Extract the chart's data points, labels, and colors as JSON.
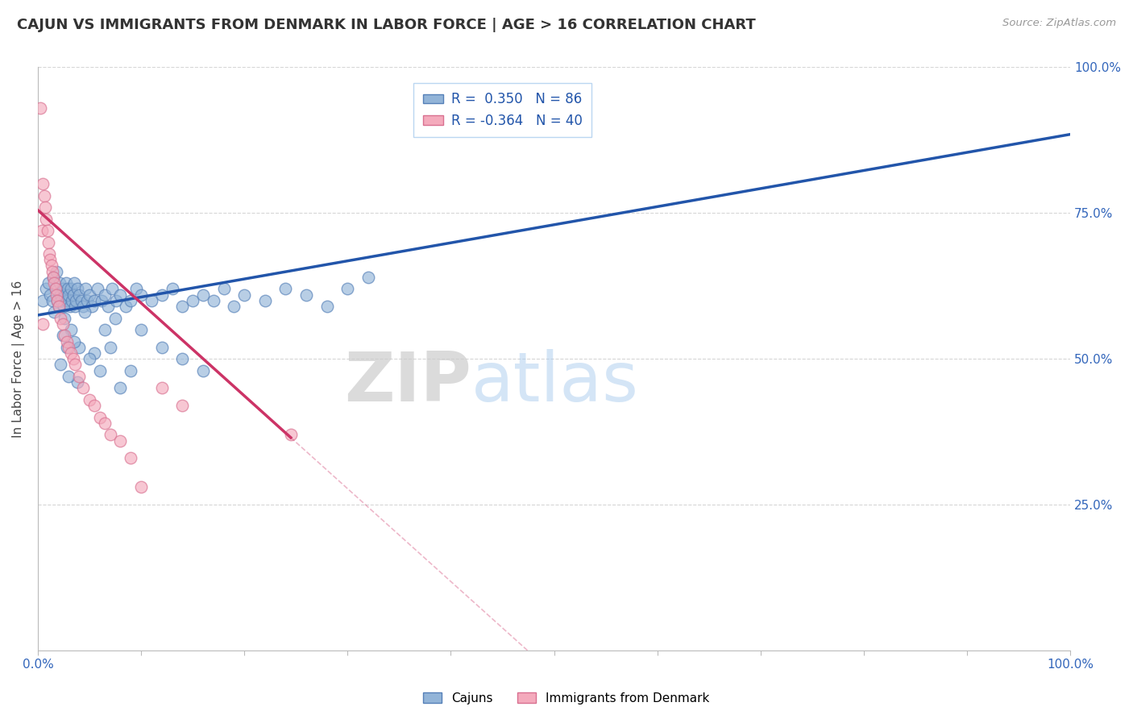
{
  "title": "CAJUN VS IMMIGRANTS FROM DENMARK IN LABOR FORCE | AGE > 16 CORRELATION CHART",
  "source": "Source: ZipAtlas.com",
  "ylabel": "In Labor Force | Age > 16",
  "xlim": [
    0.0,
    1.0
  ],
  "ylim": [
    0.0,
    1.0
  ],
  "blue_R": 0.35,
  "blue_N": 86,
  "pink_R": -0.364,
  "pink_N": 40,
  "blue_color": "#92B4D8",
  "pink_color": "#F4AABC",
  "blue_edge_color": "#5580B8",
  "pink_edge_color": "#D97090",
  "blue_line_color": "#2255AA",
  "pink_line_color": "#CC3366",
  "legend_label_blue": "Cajuns",
  "legend_label_pink": "Immigrants from Denmark",
  "watermark_zip": "ZIP",
  "watermark_atlas": "atlas",
  "title_fontsize": 13,
  "label_fontsize": 11,
  "tick_fontsize": 11,
  "blue_line_start_y": 0.575,
  "blue_line_end_y": 0.885,
  "pink_line_start_y": 0.755,
  "pink_line_end_y": 0.365,
  "pink_line_end_x": 0.245,
  "blue_scatter_x": [
    0.005,
    0.008,
    0.01,
    0.012,
    0.014,
    0.015,
    0.016,
    0.017,
    0.018,
    0.019,
    0.02,
    0.021,
    0.022,
    0.023,
    0.024,
    0.025,
    0.026,
    0.027,
    0.028,
    0.029,
    0.03,
    0.031,
    0.032,
    0.033,
    0.034,
    0.035,
    0.036,
    0.037,
    0.038,
    0.04,
    0.042,
    0.044,
    0.046,
    0.048,
    0.05,
    0.052,
    0.055,
    0.058,
    0.062,
    0.065,
    0.068,
    0.072,
    0.076,
    0.08,
    0.085,
    0.09,
    0.095,
    0.1,
    0.11,
    0.12,
    0.13,
    0.14,
    0.15,
    0.16,
    0.17,
    0.18,
    0.19,
    0.2,
    0.22,
    0.24,
    0.26,
    0.28,
    0.3,
    0.32,
    0.16,
    0.14,
    0.12,
    0.1,
    0.09,
    0.08,
    0.075,
    0.07,
    0.065,
    0.06,
    0.055,
    0.05,
    0.045,
    0.04,
    0.038,
    0.035,
    0.032,
    0.03,
    0.028,
    0.026,
    0.024,
    0.022
  ],
  "blue_scatter_y": [
    0.6,
    0.62,
    0.63,
    0.61,
    0.6,
    0.64,
    0.58,
    0.62,
    0.65,
    0.6,
    0.59,
    0.63,
    0.61,
    0.6,
    0.62,
    0.59,
    0.61,
    0.63,
    0.6,
    0.62,
    0.61,
    0.59,
    0.62,
    0.6,
    0.61,
    0.63,
    0.59,
    0.6,
    0.62,
    0.61,
    0.6,
    0.59,
    0.62,
    0.6,
    0.61,
    0.59,
    0.6,
    0.62,
    0.6,
    0.61,
    0.59,
    0.62,
    0.6,
    0.61,
    0.59,
    0.6,
    0.62,
    0.61,
    0.6,
    0.61,
    0.62,
    0.59,
    0.6,
    0.61,
    0.6,
    0.62,
    0.59,
    0.61,
    0.6,
    0.62,
    0.61,
    0.59,
    0.62,
    0.64,
    0.48,
    0.5,
    0.52,
    0.55,
    0.48,
    0.45,
    0.57,
    0.52,
    0.55,
    0.48,
    0.51,
    0.5,
    0.58,
    0.52,
    0.46,
    0.53,
    0.55,
    0.47,
    0.52,
    0.57,
    0.54,
    0.49
  ],
  "pink_scatter_x": [
    0.002,
    0.004,
    0.005,
    0.006,
    0.007,
    0.008,
    0.009,
    0.01,
    0.011,
    0.012,
    0.013,
    0.014,
    0.015,
    0.016,
    0.017,
    0.018,
    0.019,
    0.02,
    0.022,
    0.024,
    0.026,
    0.028,
    0.03,
    0.032,
    0.034,
    0.036,
    0.04,
    0.044,
    0.05,
    0.055,
    0.06,
    0.065,
    0.07,
    0.08,
    0.09,
    0.1,
    0.12,
    0.14,
    0.245,
    0.005
  ],
  "pink_scatter_y": [
    0.93,
    0.72,
    0.8,
    0.78,
    0.76,
    0.74,
    0.72,
    0.7,
    0.68,
    0.67,
    0.66,
    0.65,
    0.64,
    0.63,
    0.62,
    0.61,
    0.6,
    0.59,
    0.57,
    0.56,
    0.54,
    0.53,
    0.52,
    0.51,
    0.5,
    0.49,
    0.47,
    0.45,
    0.43,
    0.42,
    0.4,
    0.39,
    0.37,
    0.36,
    0.33,
    0.28,
    0.45,
    0.42,
    0.37,
    0.56
  ]
}
